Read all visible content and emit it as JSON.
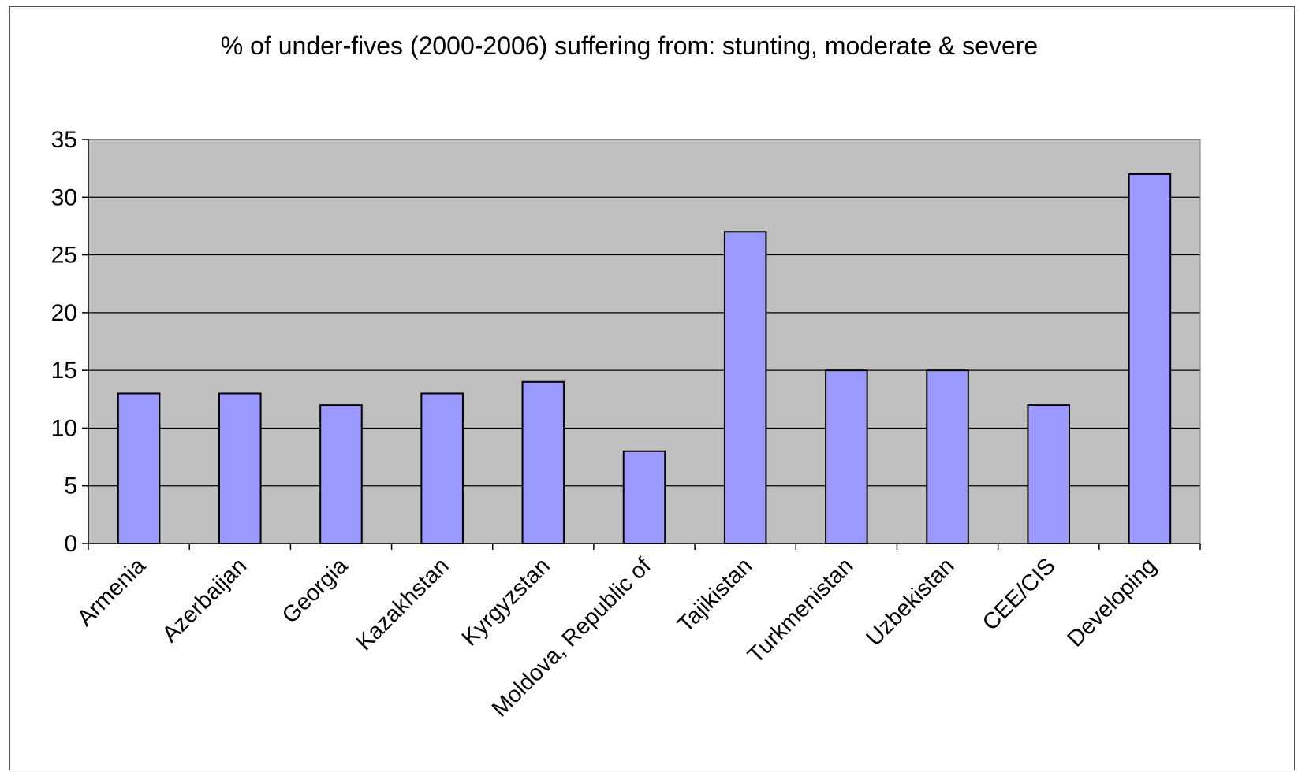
{
  "chart_data": {
    "type": "bar",
    "title": "% of under-fives (2000-2006) suffering from: stunting, moderate & severe",
    "xlabel": "",
    "ylabel": "",
    "categories": [
      "Armenia",
      "Azerbaijan",
      "Georgia",
      "Kazakhstan",
      "Kyrgyzstan",
      "Moldova, Republic of",
      "Tajikistan",
      "Turkmenistan",
      "Uzbekistan",
      "CEE/CIS",
      "Developing"
    ],
    "values": [
      13,
      13,
      12,
      13,
      14,
      8,
      27,
      15,
      15,
      12,
      32
    ],
    "ylim": [
      0,
      35
    ],
    "yticks": [
      0,
      5,
      10,
      15,
      20,
      25,
      30,
      35
    ],
    "grid": true,
    "legend": "none",
    "colors": {
      "bar_fill": "#9999ff",
      "bar_stroke": "#000000",
      "plot_background": "#c0c0c0",
      "gridline": "#000000"
    }
  }
}
